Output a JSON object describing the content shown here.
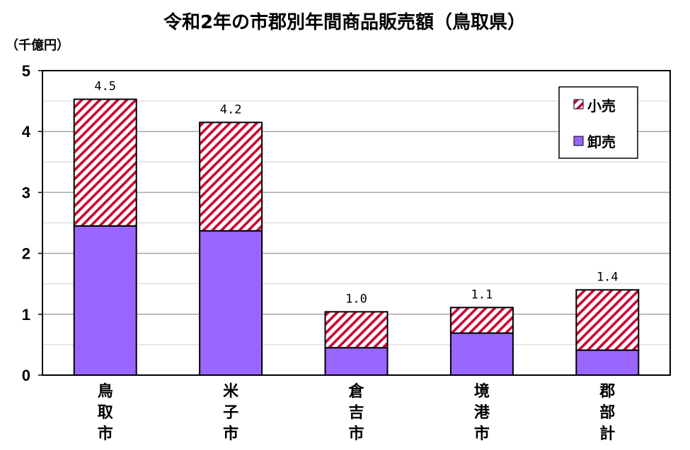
{
  "chart_data": {
    "type": "bar",
    "stacked": true,
    "title": "令和2年の市郡別年間商品販売額（鳥取県）",
    "unit_label": "（千億円）",
    "categories": [
      "鳥取市",
      "米子市",
      "倉吉市",
      "境港市",
      "郡部計"
    ],
    "series": [
      {
        "name": "卸売",
        "values": [
          2.45,
          2.37,
          0.45,
          0.69,
          0.41
        ],
        "color": "#9966ff",
        "pattern": "solid"
      },
      {
        "name": "小売",
        "values": [
          2.08,
          1.78,
          0.59,
          0.42,
          0.99
        ],
        "color": "#cc0033",
        "pattern": "diagonal-hatch"
      }
    ],
    "totals": [
      "4.5",
      "4.2",
      "1.0",
      "1.1",
      "1.4"
    ],
    "ylim": [
      0,
      5
    ],
    "yticks": [
      "0",
      "1",
      "2",
      "3",
      "4",
      "5"
    ],
    "grid": true,
    "legend_position": "top-right",
    "legend_order": [
      "小売",
      "卸売"
    ]
  }
}
